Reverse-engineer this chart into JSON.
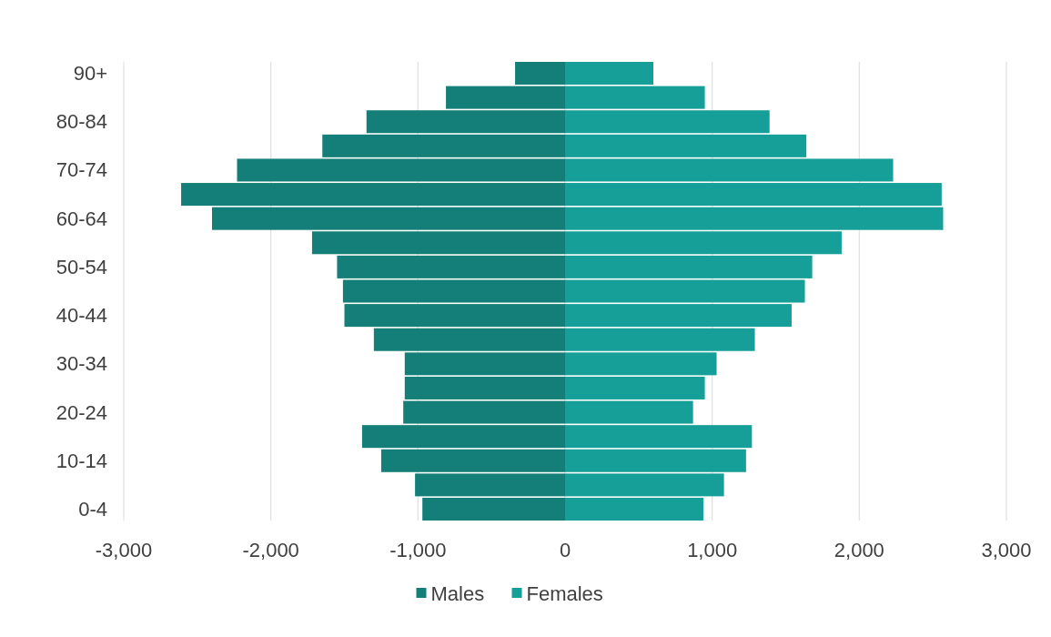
{
  "chart_data": {
    "type": "bar",
    "orientation": "horizontal",
    "categories": [
      "90+",
      null,
      "80-84",
      null,
      "70-74",
      null,
      "60-64",
      null,
      "50-54",
      null,
      "40-44",
      null,
      "30-34",
      null,
      "20-24",
      null,
      "10-14",
      null,
      "0-4"
    ],
    "series": [
      {
        "name": "Males",
        "color": "#147f78",
        "values": [
          -340,
          -810,
          -1350,
          -1650,
          -2230,
          -2610,
          -2400,
          -1720,
          -1550,
          -1510,
          -1500,
          -1300,
          -1090,
          -1090,
          -1100,
          -1380,
          -1250,
          -1020,
          -970
        ]
      },
      {
        "name": "Females",
        "color": "#169f99",
        "values": [
          600,
          950,
          1390,
          1640,
          2230,
          2560,
          2570,
          1880,
          1680,
          1630,
          1540,
          1290,
          1030,
          950,
          870,
          1270,
          1230,
          1080,
          940
        ]
      }
    ],
    "xlim": [
      -3000,
      3000
    ],
    "xticks": [
      {
        "value": -3000,
        "label": "-3,000"
      },
      {
        "value": -2000,
        "label": "-2,000"
      },
      {
        "value": -1000,
        "label": "-1,000"
      },
      0,
      {
        "value": 1000,
        "label": "1,000"
      },
      {
        "value": 2000,
        "label": "2,000"
      },
      {
        "value": 3000,
        "label": "3,000"
      }
    ],
    "grid": "x",
    "legend": "bottom",
    "stacked": true
  }
}
